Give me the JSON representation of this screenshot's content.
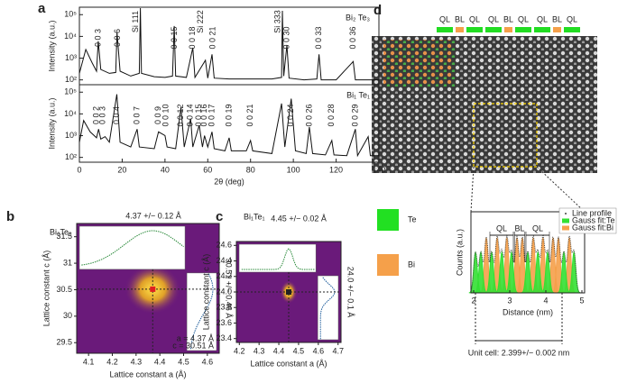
{
  "panel_a": {
    "label": "a",
    "x_label": "2θ (deg)",
    "xlim": [
      0,
      140
    ],
    "xticks": [
      0,
      20,
      40,
      60,
      80,
      100,
      120,
      140
    ],
    "ylim": [
      60,
      220000
    ],
    "yticks": [
      {
        "value": 100,
        "label": "10²"
      },
      {
        "value": 1000,
        "label": "10³"
      },
      {
        "value": 10000,
        "label": "10⁴"
      },
      {
        "value": 100000,
        "label": "10⁵"
      }
    ],
    "panels": [
      {
        "sample": "Bi₂ Te₃",
        "y_label": "Intensity (a.u.)",
        "curve": [
          [
            0,
            200
          ],
          [
            3,
            2500
          ],
          [
            6,
            600
          ],
          [
            8,
            250
          ],
          [
            8.8,
            6000
          ],
          [
            10,
            300
          ],
          [
            14,
            200
          ],
          [
            17,
            220
          ],
          [
            17.6,
            15000
          ],
          [
            19,
            250
          ],
          [
            24,
            150
          ],
          [
            28,
            200
          ],
          [
            28.5,
            200000
          ],
          [
            29,
            200
          ],
          [
            35,
            140
          ],
          [
            40,
            130
          ],
          [
            43.5,
            150
          ],
          [
            44.3,
            30000
          ],
          [
            45,
            150
          ],
          [
            50,
            130
          ],
          [
            53,
            3000
          ],
          [
            54,
            130
          ],
          [
            58.9,
            800
          ],
          [
            60,
            120
          ],
          [
            62,
            1500
          ],
          [
            63,
            120
          ],
          [
            70,
            110
          ],
          [
            80,
            110
          ],
          [
            90,
            110
          ],
          [
            94.5,
            130
          ],
          [
            94.9,
            150000
          ],
          [
            95.5,
            150
          ],
          [
            97,
            4000
          ],
          [
            98,
            120
          ],
          [
            105,
            100
          ],
          [
            111,
            110
          ],
          [
            112,
            1500
          ],
          [
            113,
            100
          ],
          [
            120,
            100
          ],
          [
            128,
            700
          ],
          [
            129,
            100
          ],
          [
            140,
            100
          ]
        ],
        "peaks": [
          {
            "label": "0 0 3",
            "x": 9
          },
          {
            "label": "0 0 6",
            "x": 18
          },
          {
            "label": "0 0 15",
            "x": 44.5
          },
          {
            "label": "0 0 18",
            "x": 53
          },
          {
            "label": "0 0 21",
            "x": 62.5
          },
          {
            "label": "0 0 30",
            "x": 97
          },
          {
            "label": "0 0 33",
            "x": 112
          },
          {
            "label": "0 0 36",
            "x": 128
          }
        ],
        "substrate_peaks": [
          {
            "label": "Si 111",
            "x": 28.5
          },
          {
            "label": "Si 222",
            "x": 58.9
          },
          {
            "label": "Si 333",
            "x": 94.9
          }
        ]
      },
      {
        "sample": "Bi₁ Te₁",
        "y_label": "Intensity (a.u.)",
        "curve": [
          [
            0,
            500
          ],
          [
            2,
            5000
          ],
          [
            5,
            1500
          ],
          [
            8,
            800
          ],
          [
            9,
            2000
          ],
          [
            10,
            700
          ],
          [
            12,
            900
          ],
          [
            14,
            500
          ],
          [
            17.5,
            80000
          ],
          [
            19,
            500
          ],
          [
            24,
            300
          ],
          [
            27,
            2000
          ],
          [
            28,
            300
          ],
          [
            35,
            250
          ],
          [
            37,
            1500
          ],
          [
            40,
            1000
          ],
          [
            41,
            300
          ],
          [
            45,
            250
          ],
          [
            47.5,
            20000
          ],
          [
            49,
            300
          ],
          [
            52,
            6000
          ],
          [
            53,
            300
          ],
          [
            56,
            3000
          ],
          [
            57.5,
            300
          ],
          [
            58.5,
            1000
          ],
          [
            60,
            300
          ],
          [
            62,
            1500
          ],
          [
            63,
            250
          ],
          [
            68,
            200
          ],
          [
            70,
            800
          ],
          [
            71,
            200
          ],
          [
            78,
            200
          ],
          [
            80,
            600
          ],
          [
            81,
            200
          ],
          [
            90,
            150
          ],
          [
            94.5,
            30000
          ],
          [
            96,
            300
          ],
          [
            99,
            50000
          ],
          [
            101,
            200
          ],
          [
            106,
            150
          ],
          [
            107.5,
            2500
          ],
          [
            109,
            150
          ],
          [
            115,
            130
          ],
          [
            118,
            600
          ],
          [
            119,
            130
          ],
          [
            125,
            120
          ],
          [
            129,
            2000
          ],
          [
            130,
            120
          ],
          [
            135,
            900
          ],
          [
            136,
            120
          ],
          [
            140,
            120
          ]
        ],
        "peaks": [
          {
            "label": "0 0 2",
            "x": 8
          },
          {
            "label": "0 0 3",
            "x": 11
          },
          {
            "label": "0 0 4",
            "x": 17.5
          },
          {
            "label": "0 0 7",
            "x": 27
          },
          {
            "label": "0 0 9",
            "x": 37
          },
          {
            "label": "0 0 10",
            "x": 40.5
          },
          {
            "label": "0 0 12",
            "x": 47.5
          },
          {
            "label": "0 0 14",
            "x": 52
          },
          {
            "label": "0 0 15",
            "x": 56
          },
          {
            "label": "0 0 16",
            "x": 58.5
          },
          {
            "label": "0 0 17",
            "x": 62
          },
          {
            "label": "0 0 19",
            "x": 70
          },
          {
            "label": "0 0 21",
            "x": 80
          },
          {
            "label": "0 0 24",
            "x": 99
          },
          {
            "label": "0 0 26",
            "x": 107.5
          },
          {
            "label": "0 0 28",
            "x": 118
          },
          {
            "label": "0 0 29",
            "x": 129
          }
        ],
        "substrate_peaks": []
      }
    ]
  },
  "maps": [
    {
      "label": "b",
      "sample": "Bi₂Te₃",
      "x_label": "Lattice constant a (Å)",
      "y_label": "Lattice constant c (Å)",
      "xlim": [
        4.05,
        4.65
      ],
      "xticks": [
        4.1,
        4.2,
        4.3,
        4.4,
        4.5,
        4.6
      ],
      "ylim": [
        29.3,
        31.75
      ],
      "yticks": [
        29.5,
        30.0,
        30.5,
        31.0,
        31.5
      ],
      "a": 4.37,
      "a_err": 0.12,
      "c": 30.51,
      "c_err": 0.46,
      "a_text": "4.37 +/− 0.12 Å",
      "c_text": "30.51 +/− 0.46 Å",
      "notes": [
        "a = 4.37 Å",
        "c = 30.51 Å"
      ]
    },
    {
      "label": "c",
      "sample": "Bi₁Te₁",
      "x_label": "Lattice constant a (Å)",
      "y_label": "Lattice constant c (Å)",
      "xlim": [
        4.185,
        4.715
      ],
      "xticks": [
        4.2,
        4.3,
        4.4,
        4.5,
        4.6,
        4.7
      ],
      "ylim": [
        23.35,
        24.65
      ],
      "yticks": [
        23.4,
        23.6,
        23.8,
        {
          "value": 24.0,
          "label": "24.0"
        },
        24.2,
        24.4,
        24.6
      ],
      "a": 4.45,
      "a_err": 0.02,
      "c": 24.0,
      "c_err": 0.1,
      "a_text": "4.45 +/− 0.02 Å",
      "c_text": "24.0 +/− 0.1 Å",
      "notes": []
    }
  ],
  "panel_d": {
    "label": "d",
    "layers": [
      "QL",
      "BL",
      "QL",
      "QL",
      "BL",
      "QL",
      "QL",
      "BL",
      "QL"
    ],
    "legend": [
      "Te",
      "Bi"
    ],
    "profile": {
      "x_label": "Distance (nm)",
      "y_label": "Counts (a.u.)",
      "xlim": [
        1.925,
        5.075
      ],
      "xticks": [
        2,
        3,
        4,
        5
      ],
      "ylim": [
        0,
        1
      ],
      "legend": [
        "Line profile",
        "Gauss fit:Te",
        "Gauss fit:Bi"
      ],
      "peak_width": 0.05,
      "te_peaks": [
        2.05,
        2.2,
        2.5,
        2.78,
        3.05,
        3.5,
        3.78,
        4.05,
        4.5,
        4.78
      ],
      "te_height": 0.5,
      "bi_peaks": [
        2.35,
        2.65,
        2.92,
        3.2,
        3.35,
        3.65,
        3.92,
        4.2,
        4.35,
        4.65
      ],
      "bi_height": 0.68,
      "spans": [
        {
          "label": "QL",
          "from": 2.45,
          "to": 3.1
        },
        {
          "label": "BL",
          "from": 3.13,
          "to": 3.42
        },
        {
          "label": "QL",
          "from": 3.45,
          "to": 4.1
        }
      ],
      "unit_cell": {
        "text": "Unit cell: 2.399+/− 0.002 nm",
        "from": 2.05,
        "to": 4.45
      }
    }
  }
}
